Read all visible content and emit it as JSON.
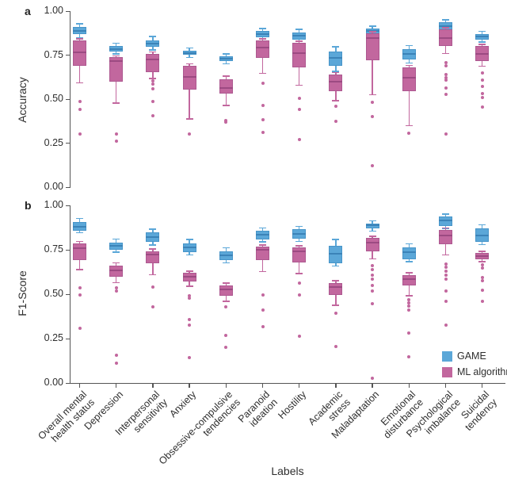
{
  "figure": {
    "panel_a_letter": "a",
    "panel_b_letter": "b",
    "x_axis_title": "Labels",
    "legend": {
      "items": [
        {
          "label": "GAME",
          "color": "#5ba7d8"
        },
        {
          "label": "ML algorithms",
          "color": "#c2679e"
        }
      ]
    }
  },
  "chart_data": [
    {
      "type": "boxplot",
      "panel": "a",
      "ylabel": "Accuracy",
      "ylim": [
        0,
        1
      ],
      "yticks": [
        1.0,
        0.75,
        0.5,
        0.25,
        0.0
      ],
      "ytick_labels": [
        "1.00",
        "0.75",
        "0.50",
        "0.25",
        "0.00"
      ],
      "grid": false,
      "legend_position": "none",
      "categories": [
        "Overall mental\nhealth status",
        "Depression",
        "Interpersonal\nsensitivity",
        "Anxiety",
        "Obsessive-compulsive\ntendencies",
        "Paranoid\nideation",
        "Hostility",
        "Academic\nstress",
        "Maladaptation",
        "Emotional\ndisturbance",
        "Psychological\nimbalance",
        "Suicidal\ntendency"
      ],
      "series": [
        {
          "name": "GAME",
          "color": "#5ba7d8",
          "border_color": "#4795c9",
          "median_color": "#3b83b8",
          "boxes": [
            {
              "low": 0.85,
              "q1": 0.87,
              "med": 0.888,
              "q3": 0.908,
              "high": 0.928,
              "outliers": []
            },
            {
              "low": 0.757,
              "q1": 0.769,
              "med": 0.785,
              "q3": 0.8,
              "high": 0.818,
              "outliers": []
            },
            {
              "low": 0.78,
              "q1": 0.797,
              "med": 0.815,
              "q3": 0.835,
              "high": 0.855,
              "outliers": []
            },
            {
              "low": 0.737,
              "q1": 0.75,
              "med": 0.763,
              "q3": 0.776,
              "high": 0.79,
              "outliers": []
            },
            {
              "low": 0.7,
              "q1": 0.714,
              "med": 0.728,
              "q3": 0.742,
              "high": 0.756,
              "outliers": []
            },
            {
              "low": 0.84,
              "q1": 0.852,
              "med": 0.87,
              "q3": 0.887,
              "high": 0.902,
              "outliers": []
            },
            {
              "low": 0.826,
              "q1": 0.838,
              "med": 0.861,
              "q3": 0.88,
              "high": 0.896,
              "outliers": []
            },
            {
              "low": 0.657,
              "q1": 0.69,
              "med": 0.733,
              "q3": 0.772,
              "high": 0.798,
              "outliers": []
            },
            {
              "low": 0.857,
              "q1": 0.869,
              "med": 0.887,
              "q3": 0.9,
              "high": 0.915,
              "outliers": []
            },
            {
              "low": 0.706,
              "q1": 0.727,
              "med": 0.756,
              "q3": 0.786,
              "high": 0.803,
              "outliers": []
            },
            {
              "low": 0.87,
              "q1": 0.885,
              "med": 0.915,
              "q3": 0.937,
              "high": 0.95,
              "outliers": []
            },
            {
              "low": 0.824,
              "q1": 0.838,
              "med": 0.855,
              "q3": 0.87,
              "high": 0.885,
              "outliers": []
            }
          ]
        },
        {
          "name": "ML algorithms",
          "color": "#c2679e",
          "border_color": "#ad5890",
          "median_color": "#9c4a82",
          "boxes": [
            {
              "low": 0.592,
              "q1": 0.69,
              "med": 0.765,
              "q3": 0.833,
              "high": 0.843,
              "outliers": [
                0.487,
                0.443,
                0.304
              ]
            },
            {
              "low": 0.478,
              "q1": 0.6,
              "med": 0.715,
              "q3": 0.737,
              "high": 0.746,
              "outliers": [
                0.302,
                0.263
              ]
            },
            {
              "low": 0.617,
              "q1": 0.652,
              "med": 0.725,
              "q3": 0.757,
              "high": 0.768,
              "outliers": [
                0.603,
                0.585,
                0.558,
                0.487,
                0.404
              ]
            },
            {
              "low": 0.388,
              "q1": 0.553,
              "med": 0.627,
              "q3": 0.69,
              "high": 0.7,
              "outliers": [
                0.303
              ]
            },
            {
              "low": 0.463,
              "q1": 0.532,
              "med": 0.565,
              "q3": 0.614,
              "high": 0.63,
              "outliers": [
                0.378,
                0.368
              ]
            },
            {
              "low": 0.647,
              "q1": 0.733,
              "med": 0.795,
              "q3": 0.832,
              "high": 0.842,
              "outliers": [
                0.59,
                0.463,
                0.382,
                0.31
              ]
            },
            {
              "low": 0.578,
              "q1": 0.68,
              "med": 0.762,
              "q3": 0.818,
              "high": 0.828,
              "outliers": [
                0.504,
                0.443,
                0.272
              ]
            },
            {
              "low": 0.49,
              "q1": 0.547,
              "med": 0.6,
              "q3": 0.64,
              "high": 0.652,
              "outliers": [
                0.458,
                0.372
              ]
            },
            {
              "low": 0.525,
              "q1": 0.72,
              "med": 0.845,
              "q3": 0.875,
              "high": 0.882,
              "outliers": [
                0.48,
                0.4,
                0.123
              ]
            },
            {
              "low": 0.35,
              "q1": 0.547,
              "med": 0.62,
              "q3": 0.682,
              "high": 0.692,
              "outliers": [
                0.306
              ]
            },
            {
              "low": 0.758,
              "q1": 0.8,
              "med": 0.845,
              "q3": 0.898,
              "high": 0.906,
              "outliers": [
                0.707,
                0.688,
                0.64,
                0.622,
                0.607,
                0.563,
                0.527,
                0.303
              ]
            },
            {
              "low": 0.688,
              "q1": 0.716,
              "med": 0.758,
              "q3": 0.8,
              "high": 0.81,
              "outliers": [
                0.648,
                0.607,
                0.573,
                0.53,
                0.51,
                0.453
              ]
            }
          ]
        }
      ]
    },
    {
      "type": "boxplot",
      "panel": "b",
      "ylabel": "F1-Score",
      "xlabel": "Labels",
      "ylim": [
        0,
        1
      ],
      "yticks": [
        1.0,
        0.75,
        0.5,
        0.25,
        0.0
      ],
      "ytick_labels": [
        "1.00",
        "0.75",
        "0.50",
        "0.25",
        "0.00"
      ],
      "grid": false,
      "legend_position": "bottom-right-inside",
      "categories": [
        "Overall mental\nhealth status",
        "Depression",
        "Interpersonal\nsensitivity",
        "Anxiety",
        "Obsessive-compulsive\ntendencies",
        "Paranoid\nideation",
        "Hostility",
        "Academic\nstress",
        "Maladaptation",
        "Emotional\ndisturbance",
        "Psychological\nimbalance",
        "Suicidal\ntendency"
      ],
      "series": [
        {
          "name": "GAME",
          "color": "#5ba7d8",
          "border_color": "#4795c9",
          "median_color": "#3b83b8",
          "boxes": [
            {
              "low": 0.845,
              "q1": 0.858,
              "med": 0.881,
              "q3": 0.906,
              "high": 0.926,
              "outliers": []
            },
            {
              "low": 0.736,
              "q1": 0.75,
              "med": 0.772,
              "q3": 0.792,
              "high": 0.81,
              "outliers": []
            },
            {
              "low": 0.777,
              "q1": 0.795,
              "med": 0.821,
              "q3": 0.847,
              "high": 0.867,
              "outliers": []
            },
            {
              "low": 0.72,
              "q1": 0.735,
              "med": 0.762,
              "q3": 0.787,
              "high": 0.807,
              "outliers": []
            },
            {
              "low": 0.676,
              "q1": 0.691,
              "med": 0.717,
              "q3": 0.743,
              "high": 0.762,
              "outliers": []
            },
            {
              "low": 0.795,
              "q1": 0.81,
              "med": 0.836,
              "q3": 0.857,
              "high": 0.872,
              "outliers": []
            },
            {
              "low": 0.797,
              "q1": 0.813,
              "med": 0.84,
              "q3": 0.866,
              "high": 0.881,
              "outliers": []
            },
            {
              "low": 0.658,
              "q1": 0.676,
              "med": 0.728,
              "q3": 0.772,
              "high": 0.807,
              "outliers": []
            },
            {
              "low": 0.855,
              "q1": 0.869,
              "med": 0.887,
              "q3": 0.899,
              "high": 0.914,
              "outliers": []
            },
            {
              "low": 0.682,
              "q1": 0.698,
              "med": 0.736,
              "q3": 0.765,
              "high": 0.783,
              "outliers": []
            },
            {
              "low": 0.869,
              "q1": 0.884,
              "med": 0.914,
              "q3": 0.936,
              "high": 0.951,
              "outliers": []
            },
            {
              "low": 0.78,
              "q1": 0.795,
              "med": 0.832,
              "q3": 0.869,
              "high": 0.891,
              "outliers": []
            }
          ]
        },
        {
          "name": "ML algorithms",
          "color": "#c2679e",
          "border_color": "#ad5890",
          "median_color": "#9c4a82",
          "boxes": [
            {
              "low": 0.638,
              "q1": 0.691,
              "med": 0.758,
              "q3": 0.787,
              "high": 0.796,
              "outliers": [
                0.534,
                0.494,
                0.308
              ]
            },
            {
              "low": 0.564,
              "q1": 0.598,
              "med": 0.632,
              "q3": 0.661,
              "high": 0.676,
              "outliers": [
                0.534,
                0.516,
                0.156,
                0.112
              ]
            },
            {
              "low": 0.609,
              "q1": 0.676,
              "med": 0.724,
              "q3": 0.743,
              "high": 0.755,
              "outliers": [
                0.539,
                0.428
              ]
            },
            {
              "low": 0.545,
              "q1": 0.571,
              "med": 0.598,
              "q3": 0.619,
              "high": 0.63,
              "outliers": [
                0.493,
                0.479,
                0.358,
                0.328,
                0.145
              ]
            },
            {
              "low": 0.46,
              "q1": 0.49,
              "med": 0.528,
              "q3": 0.549,
              "high": 0.562,
              "outliers": [
                0.428,
                0.267,
                0.199
              ]
            },
            {
              "low": 0.628,
              "q1": 0.691,
              "med": 0.748,
              "q3": 0.768,
              "high": 0.777,
              "outliers": [
                0.497,
                0.411,
                0.318
              ]
            },
            {
              "low": 0.616,
              "q1": 0.679,
              "med": 0.74,
              "q3": 0.762,
              "high": 0.772,
              "outliers": [
                0.564,
                0.494,
                0.263
              ]
            },
            {
              "low": 0.438,
              "q1": 0.497,
              "med": 0.542,
              "q3": 0.564,
              "high": 0.577,
              "outliers": [
                0.393,
                0.204
              ]
            },
            {
              "low": 0.698,
              "q1": 0.742,
              "med": 0.79,
              "q3": 0.817,
              "high": 0.827,
              "outliers": [
                0.661,
                0.638,
                0.609,
                0.586,
                0.549,
                0.519,
                0.445,
                0.028
              ]
            },
            {
              "low": 0.49,
              "q1": 0.549,
              "med": 0.584,
              "q3": 0.609,
              "high": 0.621,
              "outliers": [
                0.467,
                0.452,
                0.433,
                0.412,
                0.281,
                0.147
              ]
            },
            {
              "low": 0.72,
              "q1": 0.78,
              "med": 0.83,
              "q3": 0.862,
              "high": 0.872,
              "outliers": [
                0.668,
                0.65,
                0.631,
                0.609,
                0.586,
                0.519,
                0.46,
                0.326
              ]
            },
            {
              "low": 0.683,
              "q1": 0.697,
              "med": 0.716,
              "q3": 0.731,
              "high": 0.742,
              "outliers": [
                0.665,
                0.646,
                0.594,
                0.576,
                0.522,
                0.46
              ]
            }
          ]
        }
      ]
    }
  ]
}
